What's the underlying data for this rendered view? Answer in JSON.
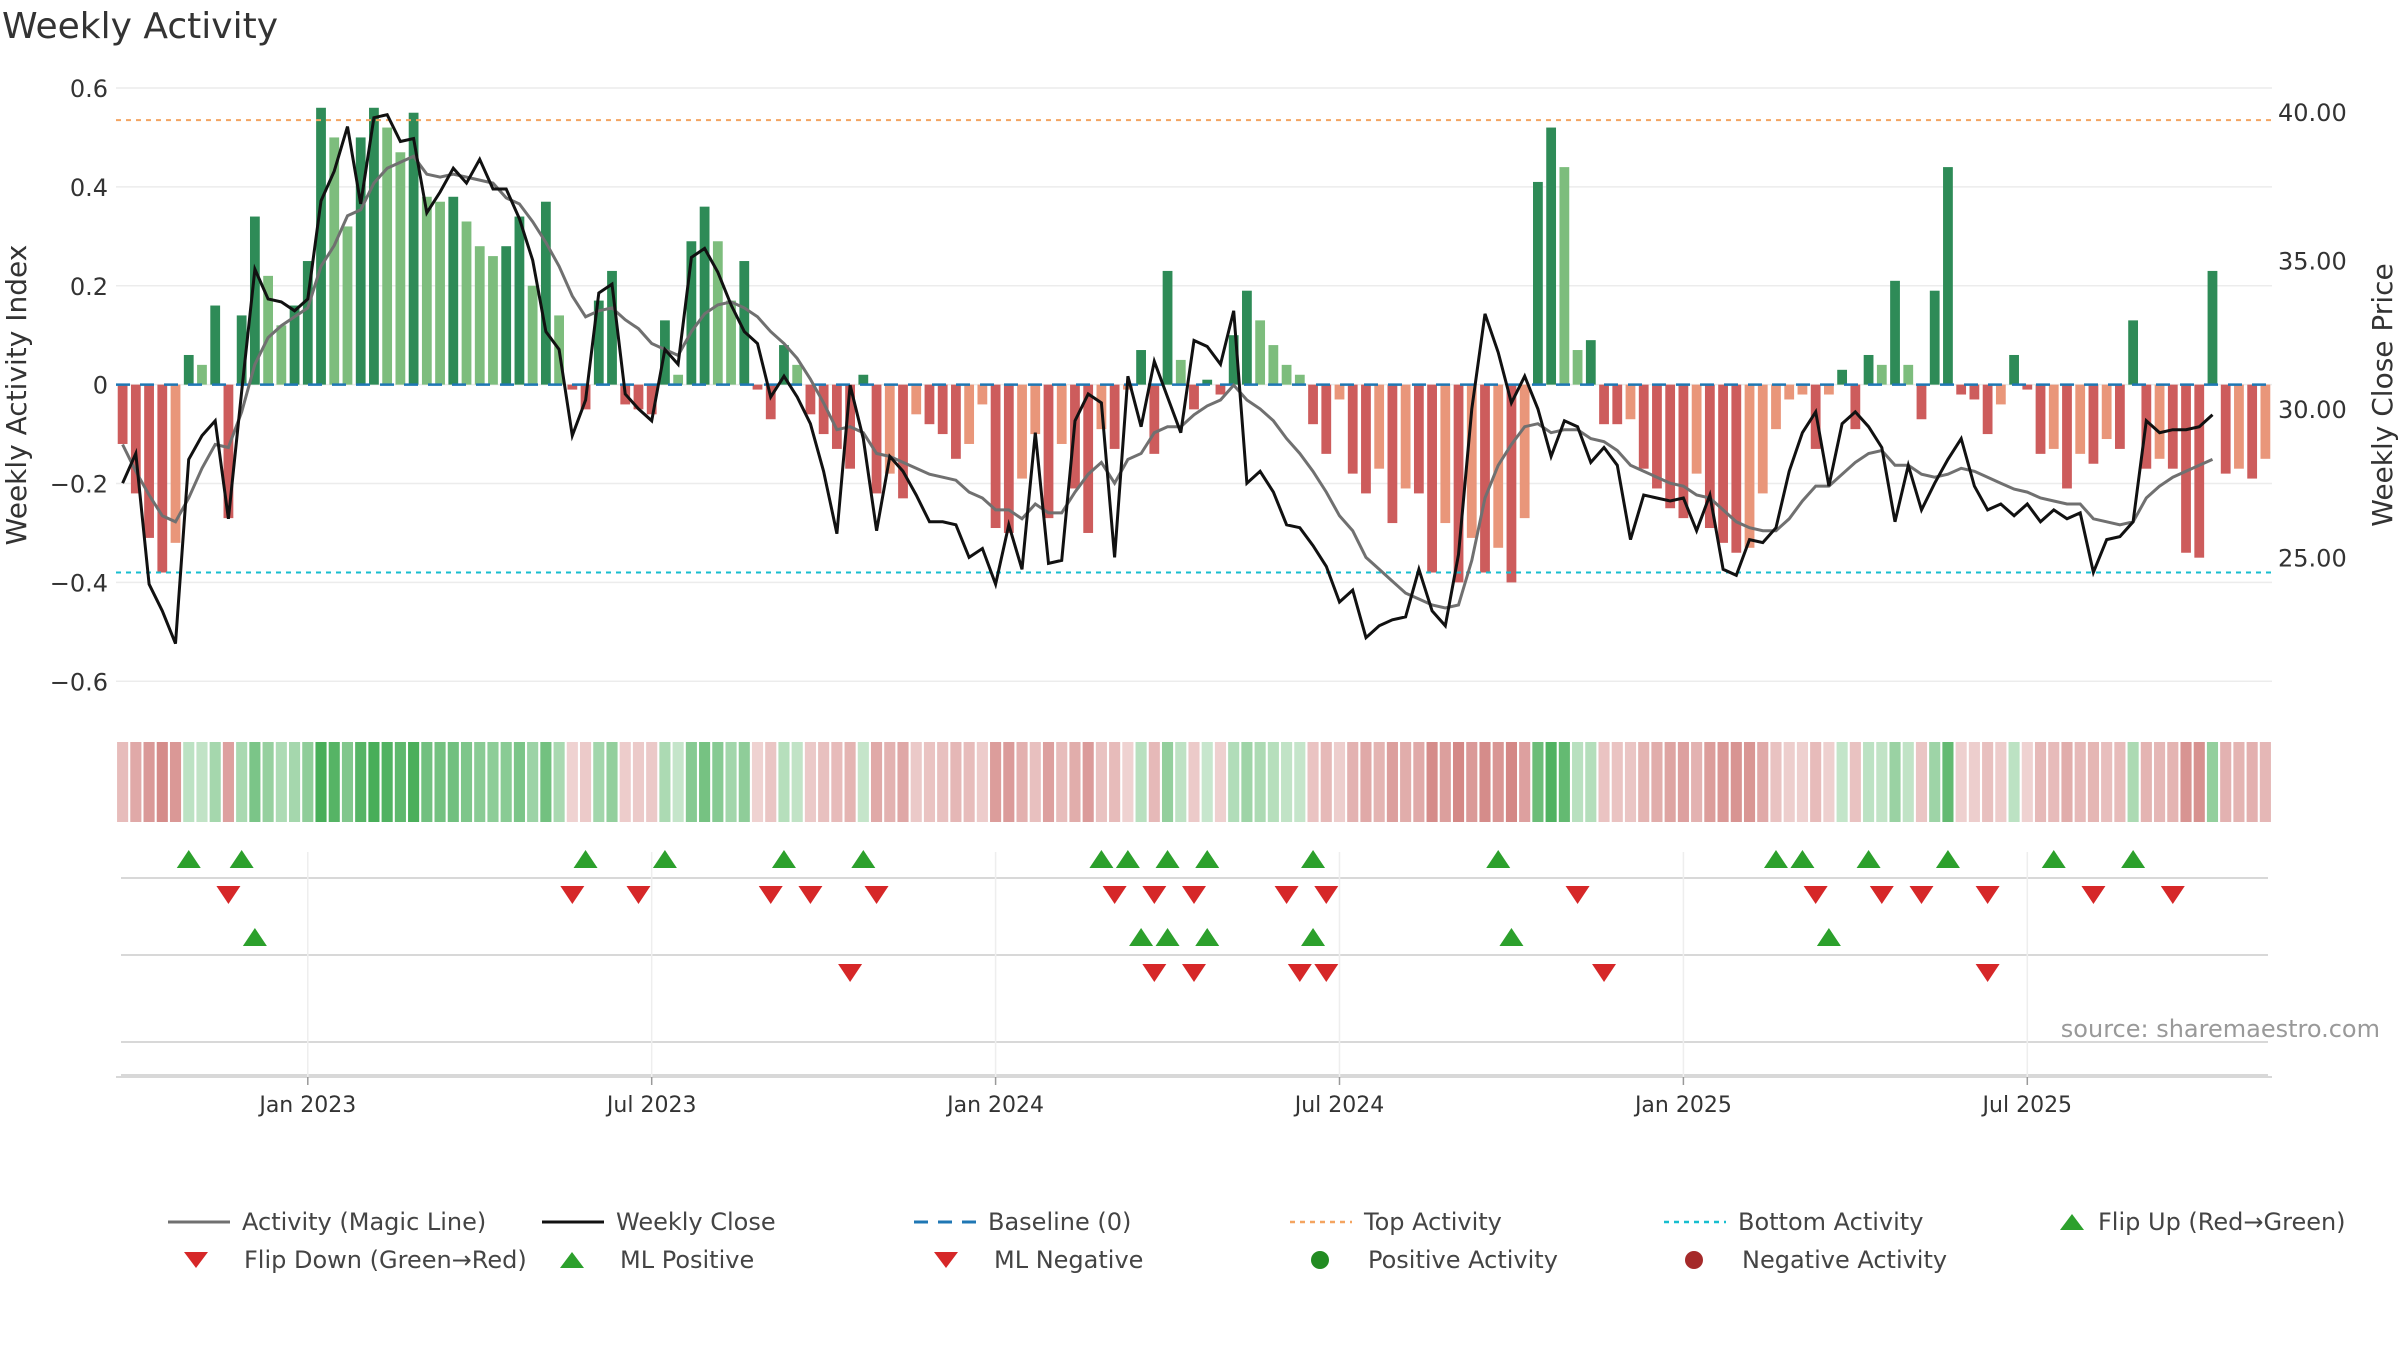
{
  "title": "Weekly Activity",
  "source": "source: sharemaestro.com",
  "colors": {
    "pos_dark": "#2e8b57",
    "pos_light": "#7dbd7d",
    "neg_dark": "#cd5c5c",
    "neg_light": "#e9967a",
    "magic": "#707070",
    "close": "#111111",
    "baseline": "#1f77b4",
    "top": "#f4a460",
    "bottom": "#17becf",
    "up": "#2ca02c",
    "down": "#d62728"
  },
  "chart_data": {
    "type": "bar",
    "title": "Weekly Activity",
    "ylabel": "Weekly Activity Index",
    "y2label": "Weekly Close Price",
    "ylim": [
      -0.65,
      0.6
    ],
    "y2lim": [
      20.0,
      40.8
    ],
    "yticks": [
      "0.6",
      "0.4",
      "0.2",
      "0",
      "−0.2",
      "−0.4",
      "−0.6"
    ],
    "y2ticks": [
      "40.00",
      "35.00",
      "30.00",
      "25.00"
    ],
    "xticks": [
      "Jan 2023",
      "Jul 2023",
      "Jan 2024",
      "Jul 2024",
      "Jan 2025",
      "Jul 2025"
    ],
    "xtick_weeks": [
      14,
      40,
      66,
      92,
      118,
      144
    ],
    "top_activity": 0.535,
    "bottom_activity": -0.38,
    "activity": [
      -0.12,
      -0.22,
      -0.31,
      -0.38,
      -0.32,
      0.06,
      0.04,
      0.16,
      -0.27,
      0.14,
      0.34,
      0.22,
      0.12,
      0.16,
      0.25,
      0.56,
      0.5,
      0.32,
      0.5,
      0.56,
      0.52,
      0.47,
      0.55,
      0.38,
      0.37,
      0.38,
      0.33,
      0.28,
      0.26,
      0.28,
      0.34,
      0.2,
      0.37,
      0.14,
      -0.01,
      -0.05,
      0.17,
      0.23,
      -0.04,
      -0.05,
      -0.06,
      0.13,
      0.02,
      0.29,
      0.36,
      0.29,
      0.17,
      0.25,
      -0.01,
      -0.07,
      0.08,
      0.04,
      -0.06,
      -0.1,
      -0.13,
      -0.17,
      0.02,
      -0.22,
      -0.18,
      -0.23,
      -0.06,
      -0.08,
      -0.1,
      -0.15,
      -0.12,
      -0.04,
      -0.29,
      -0.3,
      -0.19,
      -0.1,
      -0.27,
      -0.12,
      -0.21,
      -0.3,
      -0.09,
      -0.13,
      -0.01,
      0.07,
      -0.14,
      0.23,
      0.05,
      -0.05,
      0.01,
      -0.02,
      0.1,
      0.19,
      0.13,
      0.08,
      0.04,
      0.02,
      -0.08,
      -0.14,
      -0.03,
      -0.18,
      -0.22,
      -0.17,
      -0.28,
      -0.21,
      -0.22,
      -0.38,
      -0.28,
      -0.4,
      -0.31,
      -0.38,
      -0.33,
      -0.4,
      -0.27,
      0.41,
      0.52,
      0.44,
      0.07,
      0.09,
      -0.08,
      -0.08,
      -0.07,
      -0.17,
      -0.21,
      -0.25,
      -0.27,
      -0.18,
      -0.29,
      -0.32,
      -0.34,
      -0.33,
      -0.22,
      -0.09,
      -0.03,
      -0.02,
      -0.13,
      -0.02,
      0.03,
      -0.09,
      0.06,
      0.04,
      0.21,
      0.04,
      -0.07,
      0.19,
      0.44,
      -0.02,
      -0.03,
      -0.1,
      -0.04,
      0.06,
      -0.01,
      -0.14,
      -0.13,
      -0.21,
      -0.14,
      -0.16,
      -0.11,
      -0.13,
      0.13,
      -0.17,
      -0.15,
      -0.17,
      -0.34,
      -0.35,
      0.23,
      -0.18,
      -0.17,
      -0.19,
      -0.15
    ],
    "weekly_close": [
      27.5,
      28.5,
      24.1,
      23.2,
      22.1,
      28.3,
      29.1,
      29.6,
      26.3,
      30.6,
      34.7,
      33.7,
      33.6,
      33.3,
      33.7,
      37.0,
      38.0,
      39.5,
      36.9,
      39.8,
      39.9,
      39.0,
      39.1,
      36.6,
      37.3,
      38.1,
      37.6,
      38.4,
      37.4,
      37.4,
      36.4,
      35.0,
      32.6,
      32.0,
      29.1,
      30.3,
      33.9,
      34.2,
      30.5,
      30.0,
      29.6,
      32.0,
      31.5,
      35.1,
      35.4,
      34.6,
      33.5,
      32.6,
      32.2,
      30.4,
      31.1,
      30.4,
      29.5,
      27.9,
      25.8,
      30.8,
      29.0,
      25.9,
      28.4,
      27.9,
      27.1,
      26.2,
      26.2,
      26.1,
      25.0,
      25.3,
      24.1,
      26.1,
      24.6,
      29.2,
      24.8,
      24.9,
      29.6,
      30.5,
      30.2,
      25.0,
      31.1,
      29.4,
      31.6,
      30.4,
      29.2,
      32.3,
      32.1,
      31.5,
      33.3,
      27.5,
      27.9,
      27.2,
      26.1,
      26.0,
      25.4,
      24.7,
      23.5,
      23.9,
      22.3,
      22.7,
      22.9,
      23.0,
      24.6,
      23.2,
      22.7,
      25.1,
      30.0,
      33.2,
      31.9,
      30.2,
      31.1,
      30.0,
      28.4,
      29.6,
      29.4,
      28.2,
      28.7,
      28.1,
      25.6,
      27.1,
      27.0,
      26.9,
      27.0,
      25.9,
      27.1,
      24.6,
      24.4,
      25.6,
      25.5,
      26.0,
      27.9,
      29.2,
      29.9,
      27.4,
      29.5,
      29.9,
      29.4,
      28.7,
      26.2,
      28.1,
      26.6,
      27.5,
      28.3,
      29.0,
      27.4,
      26.6,
      26.8,
      26.4,
      26.8,
      26.2,
      26.6,
      26.3,
      26.5,
      24.5,
      25.6,
      25.7,
      26.2,
      29.6,
      29.2,
      29.3,
      29.3,
      29.4,
      29.8
    ],
    "magic_line": [
      28.8,
      27.9,
      27.1,
      26.4,
      26.2,
      27.0,
      28.0,
      28.8,
      28.7,
      29.9,
      31.5,
      32.4,
      32.8,
      33.1,
      33.4,
      34.8,
      35.5,
      36.5,
      36.7,
      37.6,
      38.1,
      38.3,
      38.5,
      37.9,
      37.8,
      37.9,
      37.8,
      37.7,
      37.6,
      37.1,
      36.9,
      36.3,
      35.6,
      34.8,
      33.8,
      33.1,
      33.3,
      33.4,
      33.0,
      32.7,
      32.2,
      32.0,
      31.8,
      32.6,
      33.2,
      33.5,
      33.6,
      33.4,
      33.1,
      32.6,
      32.2,
      31.7,
      31.0,
      30.2,
      29.3,
      29.4,
      29.2,
      28.5,
      28.4,
      28.2,
      28.0,
      27.8,
      27.7,
      27.6,
      27.2,
      27.0,
      26.6,
      26.6,
      26.3,
      26.8,
      26.5,
      26.5,
      27.2,
      27.8,
      28.2,
      27.5,
      28.3,
      28.5,
      29.2,
      29.4,
      29.4,
      29.8,
      30.1,
      30.3,
      30.8,
      30.3,
      30.0,
      29.6,
      29.0,
      28.5,
      27.9,
      27.2,
      26.4,
      25.9,
      25.0,
      24.6,
      24.2,
      23.8,
      23.6,
      23.4,
      23.3,
      23.4,
      24.9,
      27.0,
      28.1,
      28.8,
      29.4,
      29.5,
      29.2,
      29.3,
      29.3,
      29.0,
      28.9,
      28.6,
      28.1,
      27.9,
      27.7,
      27.5,
      27.4,
      27.1,
      27.0,
      26.6,
      26.2,
      26.0,
      25.9,
      25.9,
      26.3,
      26.9,
      27.4,
      27.4,
      27.8,
      28.2,
      28.5,
      28.6,
      28.1,
      28.1,
      27.8,
      27.7,
      27.8,
      28.0,
      27.9,
      27.7,
      27.5,
      27.3,
      27.2,
      27.0,
      26.9,
      26.8,
      26.8,
      26.3,
      26.2,
      26.1,
      26.2,
      27.0,
      27.4,
      27.7,
      27.9,
      28.1,
      28.3
    ],
    "flip_up_weeks": [
      5,
      9,
      35,
      41,
      50,
      56,
      74,
      76,
      79,
      82,
      90,
      104,
      125,
      127,
      132,
      138,
      146,
      152
    ],
    "flip_down_weeks": [
      8,
      34,
      39,
      49,
      52,
      57,
      75,
      78,
      81,
      88,
      91,
      110,
      128,
      133,
      136,
      141,
      149,
      155
    ],
    "ml_positive_weeks": [
      10,
      77,
      79,
      82,
      90,
      105,
      129
    ],
    "ml_negative_weeks": [
      55,
      78,
      81,
      89,
      91,
      112,
      141
    ]
  },
  "legend": {
    "row1": [
      "Activity (Magic Line)",
      "Weekly Close",
      "Baseline (0)",
      "Top Activity",
      "Bottom Activity",
      "Flip Up (Red→Green)"
    ],
    "row2": [
      "Flip Down (Green→Red)",
      "ML Positive",
      "ML Negative",
      "Positive Activity",
      "Negative Activity"
    ]
  }
}
